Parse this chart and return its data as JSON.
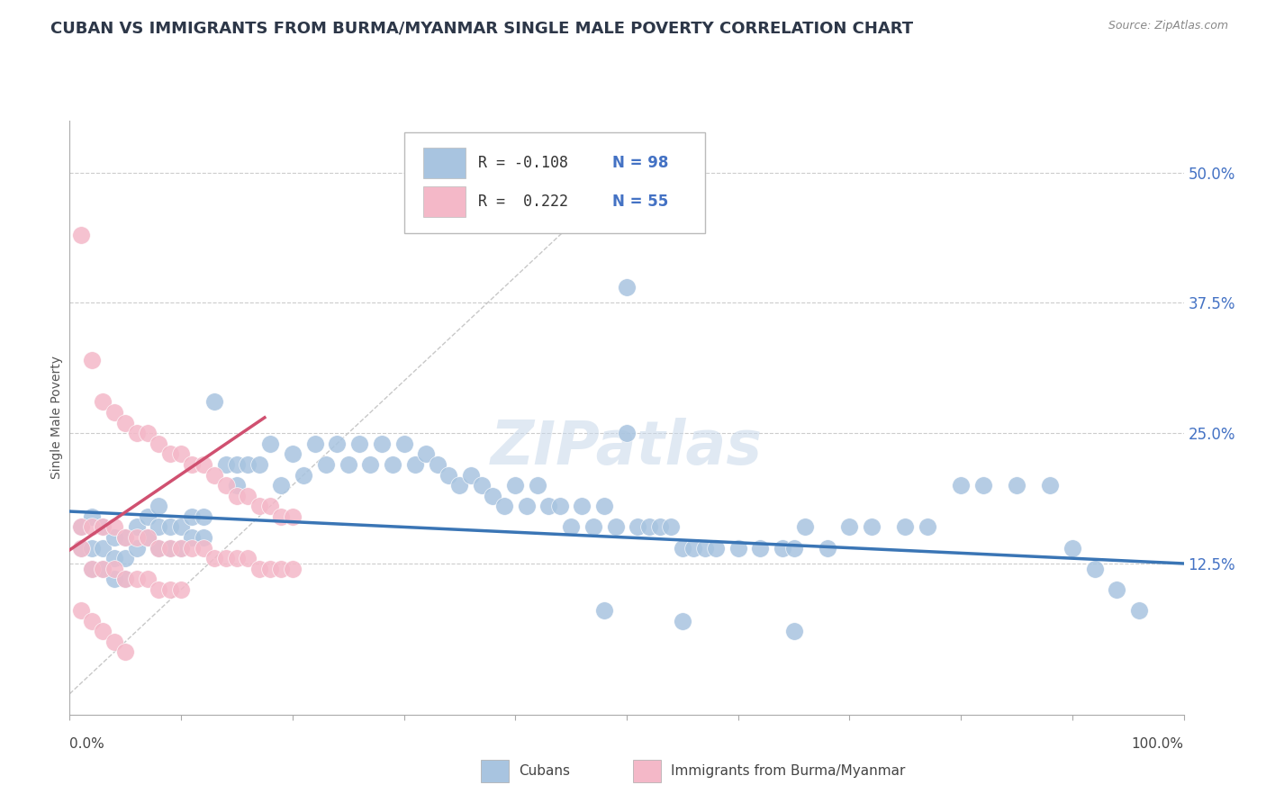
{
  "title": "CUBAN VS IMMIGRANTS FROM BURMA/MYANMAR SINGLE MALE POVERTY CORRELATION CHART",
  "source": "Source: ZipAtlas.com",
  "ylabel": "Single Male Poverty",
  "y_tick_vals": [
    0.125,
    0.25,
    0.375,
    0.5
  ],
  "y_tick_labels": [
    "12.5%",
    "25.0%",
    "37.5%",
    "50.0%"
  ],
  "x_lim": [
    0.0,
    1.0
  ],
  "y_lim": [
    -0.02,
    0.55
  ],
  "blue_color": "#a8c4e0",
  "pink_color": "#f4b8c8",
  "blue_line_color": "#3a75b5",
  "pink_line_color": "#d05070",
  "diagonal_color": "#c8c8c8",
  "watermark": "ZIPatlas",
  "title_fontsize": 13,
  "background_color": "#ffffff",
  "blue_scatter_x": [
    0.01,
    0.01,
    0.02,
    0.02,
    0.02,
    0.03,
    0.03,
    0.03,
    0.04,
    0.04,
    0.04,
    0.05,
    0.05,
    0.05,
    0.06,
    0.06,
    0.07,
    0.07,
    0.08,
    0.08,
    0.08,
    0.09,
    0.09,
    0.1,
    0.1,
    0.11,
    0.11,
    0.12,
    0.12,
    0.13,
    0.14,
    0.15,
    0.15,
    0.16,
    0.17,
    0.18,
    0.19,
    0.2,
    0.21,
    0.22,
    0.23,
    0.24,
    0.25,
    0.26,
    0.27,
    0.28,
    0.29,
    0.3,
    0.31,
    0.32,
    0.33,
    0.34,
    0.35,
    0.36,
    0.37,
    0.38,
    0.39,
    0.4,
    0.41,
    0.42,
    0.43,
    0.44,
    0.45,
    0.46,
    0.47,
    0.48,
    0.49,
    0.5,
    0.51,
    0.52,
    0.53,
    0.54,
    0.55,
    0.56,
    0.57,
    0.58,
    0.6,
    0.62,
    0.64,
    0.65,
    0.66,
    0.68,
    0.7,
    0.72,
    0.75,
    0.77,
    0.8,
    0.82,
    0.85,
    0.88,
    0.9,
    0.92,
    0.94,
    0.96,
    0.5,
    0.48,
    0.55,
    0.65
  ],
  "blue_scatter_y": [
    0.16,
    0.14,
    0.17,
    0.14,
    0.12,
    0.16,
    0.14,
    0.12,
    0.15,
    0.13,
    0.11,
    0.15,
    0.13,
    0.11,
    0.16,
    0.14,
    0.17,
    0.15,
    0.18,
    0.16,
    0.14,
    0.16,
    0.14,
    0.16,
    0.14,
    0.17,
    0.15,
    0.17,
    0.15,
    0.28,
    0.22,
    0.22,
    0.2,
    0.22,
    0.22,
    0.24,
    0.2,
    0.23,
    0.21,
    0.24,
    0.22,
    0.24,
    0.22,
    0.24,
    0.22,
    0.24,
    0.22,
    0.24,
    0.22,
    0.23,
    0.22,
    0.21,
    0.2,
    0.21,
    0.2,
    0.19,
    0.18,
    0.2,
    0.18,
    0.2,
    0.18,
    0.18,
    0.16,
    0.18,
    0.16,
    0.18,
    0.16,
    0.25,
    0.16,
    0.16,
    0.16,
    0.16,
    0.14,
    0.14,
    0.14,
    0.14,
    0.14,
    0.14,
    0.14,
    0.14,
    0.16,
    0.14,
    0.16,
    0.16,
    0.16,
    0.16,
    0.2,
    0.2,
    0.2,
    0.2,
    0.14,
    0.12,
    0.1,
    0.08,
    0.39,
    0.08,
    0.07,
    0.06
  ],
  "pink_scatter_x": [
    0.01,
    0.01,
    0.01,
    0.02,
    0.02,
    0.02,
    0.03,
    0.03,
    0.03,
    0.04,
    0.04,
    0.04,
    0.05,
    0.05,
    0.05,
    0.06,
    0.06,
    0.06,
    0.07,
    0.07,
    0.07,
    0.08,
    0.08,
    0.08,
    0.09,
    0.09,
    0.09,
    0.1,
    0.1,
    0.1,
    0.11,
    0.11,
    0.12,
    0.12,
    0.13,
    0.13,
    0.14,
    0.14,
    0.15,
    0.15,
    0.16,
    0.16,
    0.17,
    0.17,
    0.18,
    0.18,
    0.19,
    0.19,
    0.2,
    0.2,
    0.01,
    0.02,
    0.03,
    0.04,
    0.05
  ],
  "pink_scatter_y": [
    0.44,
    0.16,
    0.14,
    0.32,
    0.16,
    0.12,
    0.28,
    0.16,
    0.12,
    0.27,
    0.16,
    0.12,
    0.26,
    0.15,
    0.11,
    0.25,
    0.15,
    0.11,
    0.25,
    0.15,
    0.11,
    0.24,
    0.14,
    0.1,
    0.23,
    0.14,
    0.1,
    0.23,
    0.14,
    0.1,
    0.22,
    0.14,
    0.22,
    0.14,
    0.21,
    0.13,
    0.2,
    0.13,
    0.19,
    0.13,
    0.19,
    0.13,
    0.18,
    0.12,
    0.18,
    0.12,
    0.17,
    0.12,
    0.17,
    0.12,
    0.08,
    0.07,
    0.06,
    0.05,
    0.04
  ],
  "blue_trend_x": [
    0.0,
    1.0
  ],
  "blue_trend_y": [
    0.175,
    0.125
  ],
  "pink_trend_x": [
    0.0,
    0.175
  ],
  "pink_trend_y": [
    0.138,
    0.265
  ],
  "legend_r1": "R = -0.108",
  "legend_n1": "N = 98",
  "legend_r2": "R =  0.222",
  "legend_n2": "N = 55",
  "legend_color1": "#a8c4e0",
  "legend_color2": "#f4b8c8"
}
